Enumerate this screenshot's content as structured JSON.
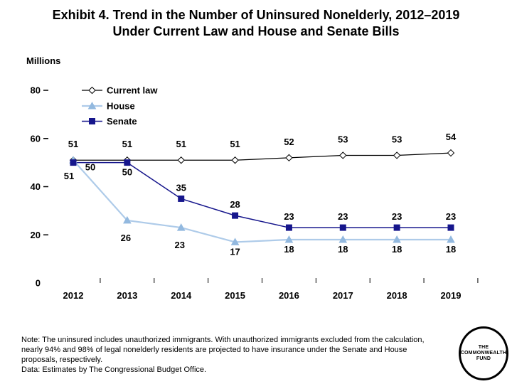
{
  "slide": {
    "title_line1": "Exhibit 4. Trend in the Number of Uninsured Nonelderly, 2012–2019",
    "title_line2": "Under Current Law and House and Senate Bills",
    "units_label": "Millions",
    "note_lines": [
      "Note: The uninsured includes unauthorized immigrants. With unauthorized immigrants excluded from the calculation,",
      "nearly 94% and 98% of legal nonelderly residents are projected to have insurance under the Senate and House",
      "proposals, respectively.",
      "Data: Estimates by The Congressional Budget Office."
    ],
    "logo_lines": [
      "THE",
      "COMMONWEALTH",
      "FUND"
    ]
  },
  "chart_data": {
    "type": "line",
    "title": "Exhibit 4. Trend in the Number of Uninsured Nonelderly, 2012–2019 Under Current Law and House and Senate Bills",
    "ylabel": "Millions",
    "xlabel": "",
    "categories": [
      "2012",
      "2013",
      "2014",
      "2015",
      "2016",
      "2017",
      "2018",
      "2019"
    ],
    "ylim": [
      0,
      80
    ],
    "yticks": [
      0,
      20,
      40,
      60,
      80
    ],
    "grid": false,
    "legend_position": "top-left-inside",
    "series": [
      {
        "name": "Current law",
        "color": "#000000",
        "marker": "diamond-open",
        "values": [
          51,
          51,
          51,
          51,
          52,
          53,
          53,
          54
        ],
        "label_placements": [
          "above-far",
          "above-far",
          "above-far",
          "above-far",
          "above-far",
          "above-far",
          "above-far",
          "above-far"
        ]
      },
      {
        "name": "House",
        "color": "#AECBE9",
        "marker_color": "#93B9DF",
        "marker": "triangle",
        "values": [
          51,
          26,
          23,
          17,
          18,
          18,
          18,
          18
        ],
        "label_placements": [
          "below-left",
          "below-far",
          "below-far",
          "below",
          "below",
          "below",
          "below",
          "below"
        ]
      },
      {
        "name": "Senate",
        "color": "#16168C",
        "marker_color": "#16168C",
        "marker": "square",
        "values": [
          50,
          50,
          35,
          28,
          23,
          23,
          23,
          23
        ],
        "label_placements": [
          "right-below",
          "below",
          "above",
          "above",
          "above",
          "above",
          "above",
          "above"
        ]
      }
    ]
  }
}
